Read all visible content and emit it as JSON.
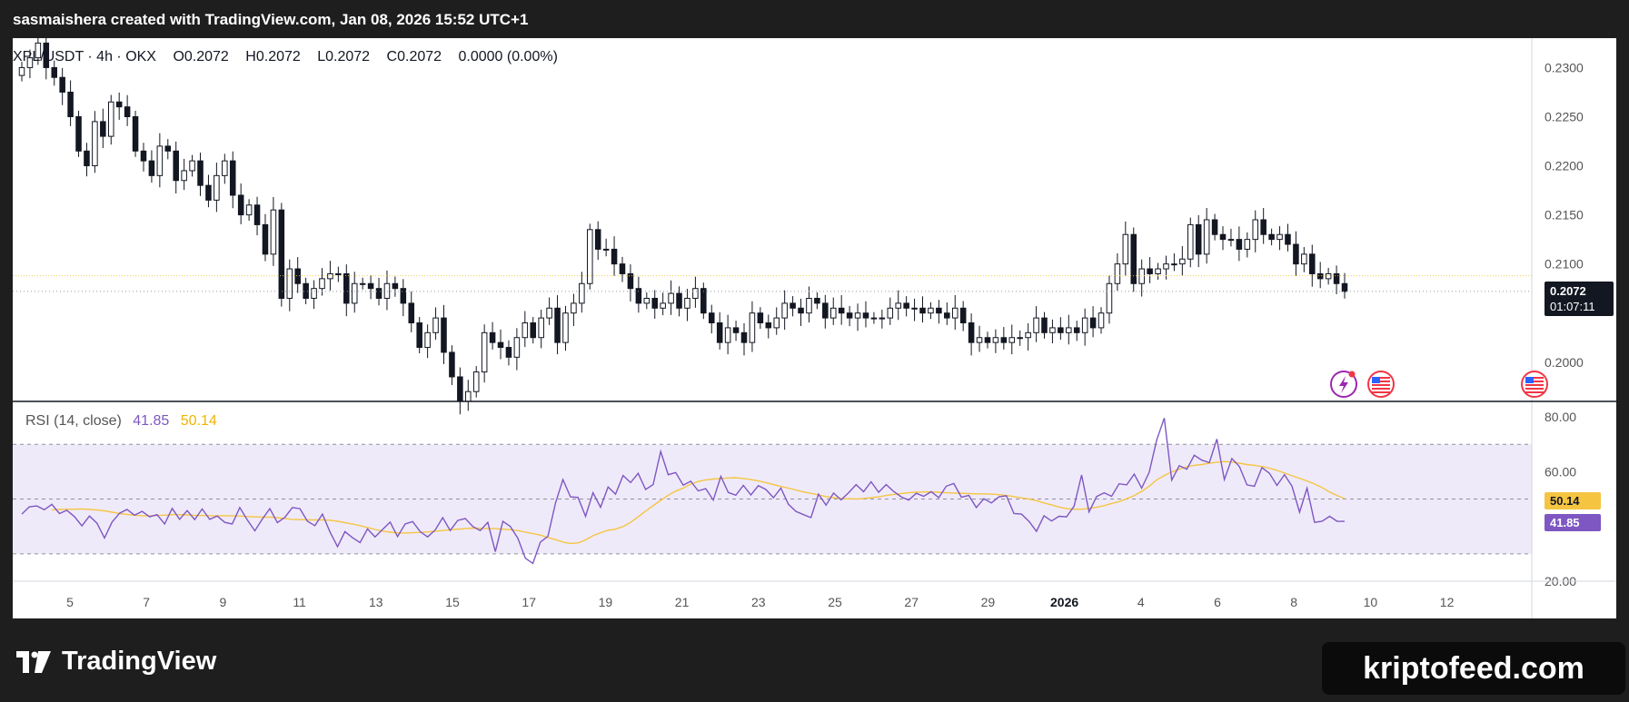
{
  "header": {
    "title": "sasmaishera created with TradingView.com, Jan 08, 2026 15:52 UTC+1"
  },
  "legend": {
    "symbol": "XPL/USDT · 4h · OKX",
    "o_label": "O",
    "o_value": "0.2072",
    "h_label": "H",
    "h_value": "0.2072",
    "l_label": "L",
    "l_value": "0.2072",
    "c_label": "C",
    "c_value": "0.2072",
    "change": "0.0000 (0.00%)"
  },
  "last_price": {
    "value": "0.2072",
    "countdown": "01:07:11"
  },
  "rsi_legend": {
    "label": "RSI (14, close)",
    "rsi_value": "41.85",
    "ma_value": "50.14"
  },
  "footer": {
    "logo_text": "TradingView",
    "watermark": "kriptofeed.com"
  },
  "colors": {
    "candle_up": "#ffffff",
    "candle_down": "#131722",
    "wick": "#131722",
    "rsi_line": "#7e57c2",
    "rsi_ma": "#f5c542",
    "rsi_band": "#efeafa",
    "price_line": "#f5c542"
  },
  "icons": [
    "lightning-event-icon",
    "us-flag-icon"
  ],
  "chart_data": [
    {
      "type": "candlestick",
      "title": "",
      "x_axis": {
        "ticks": [
          "5",
          "7",
          "9",
          "11",
          "13",
          "15",
          "17",
          "19",
          "21",
          "23",
          "25",
          "27",
          "29",
          "2026",
          "4",
          "6",
          "8",
          "10",
          "12"
        ]
      },
      "y_axis": {
        "ticks": [
          "0.2300",
          "0.2250",
          "0.2200",
          "0.2150",
          "0.2100",
          "0.2000"
        ],
        "range": [
          0.196,
          0.233
        ]
      },
      "closes": [
        0.23,
        0.231,
        0.2325,
        0.23,
        0.229,
        0.2275,
        0.225,
        0.2215,
        0.22,
        0.2245,
        0.223,
        0.2265,
        0.226,
        0.225,
        0.2215,
        0.2205,
        0.219,
        0.222,
        0.2215,
        0.2185,
        0.2195,
        0.2205,
        0.218,
        0.2165,
        0.219,
        0.2205,
        0.217,
        0.215,
        0.216,
        0.214,
        0.211,
        0.2155,
        0.2065,
        0.2095,
        0.208,
        0.2065,
        0.2075,
        0.2085,
        0.209,
        0.209,
        0.206,
        0.208,
        0.208,
        0.2075,
        0.2065,
        0.208,
        0.2075,
        0.206,
        0.204,
        0.2015,
        0.203,
        0.2045,
        0.201,
        0.1985,
        0.196,
        0.197,
        0.199,
        0.203,
        0.202,
        0.2015,
        0.2005,
        0.2025,
        0.204,
        0.2025,
        0.2045,
        0.2055,
        0.202,
        0.205,
        0.206,
        0.208,
        0.2135,
        0.2115,
        0.2115,
        0.21,
        0.209,
        0.2075,
        0.206,
        0.2065,
        0.2055,
        0.206,
        0.207,
        0.2055,
        0.2065,
        0.2075,
        0.205,
        0.204,
        0.202,
        0.2035,
        0.203,
        0.202,
        0.205,
        0.204,
        0.2035,
        0.2045,
        0.206,
        0.2055,
        0.205,
        0.2065,
        0.206,
        0.2045,
        0.2055,
        0.205,
        0.2045,
        0.205,
        0.2045,
        0.2045,
        0.2045,
        0.2055,
        0.206,
        0.2055,
        0.2055,
        0.205,
        0.2055,
        0.205,
        0.2045,
        0.2055,
        0.204,
        0.202,
        0.2025,
        0.202,
        0.2025,
        0.202,
        0.2025,
        0.2025,
        0.203,
        0.2045,
        0.203,
        0.2035,
        0.203,
        0.2035,
        0.203,
        0.2045,
        0.2035,
        0.205,
        0.208,
        0.21,
        0.213,
        0.208,
        0.2095,
        0.209,
        0.2095,
        0.21,
        0.21,
        0.2105,
        0.214,
        0.211,
        0.2145,
        0.213,
        0.2125,
        0.2125,
        0.2115,
        0.2125,
        0.2145,
        0.213,
        0.2125,
        0.213,
        0.212,
        0.21,
        0.211,
        0.209,
        0.2085,
        0.209,
        0.208,
        0.2072
      ],
      "legend": ""
    },
    {
      "type": "line",
      "title": "",
      "series": [
        {
          "name": "RSI (14, close)",
          "last": 41.85
        },
        {
          "name": "",
          "last": 50.14
        }
      ],
      "y_axis": {
        "ticks": [
          "80.00",
          "60.00",
          "20.00"
        ],
        "range": [
          20,
          85
        ]
      },
      "band": [
        30,
        70
      ],
      "midline": 50,
      "rsi_values": [
        44.5,
        47.2,
        47.5,
        46.1,
        48.1,
        44.7,
        45.9,
        43.6,
        40.2,
        43.8,
        41.2,
        35.8,
        41.6,
        44.8,
        46.2,
        44.1,
        45.5,
        43.5,
        44.3,
        40.9,
        46.6,
        42.6,
        45.8,
        42.5,
        46.4,
        42.6,
        43.8,
        41.5,
        40.9,
        46.9,
        42.4,
        38.4,
        42.7,
        46.5,
        41.4,
        43.3,
        46.9,
        46.5,
        41.9,
        40.3,
        44.5,
        38.0,
        32.6,
        38.1,
        35.9,
        34.1,
        39.1,
        36.2,
        38.9,
        41.6,
        36.3,
        40.9,
        41.8,
        38.1,
        36.2,
        38.7,
        43.2,
        38.5,
        42.2,
        42.9,
        40.0,
        38.5,
        41.5,
        30.8,
        41.9,
        40.0,
        35.7,
        28.4,
        26.5,
        34.3,
        36.4,
        48.5,
        57.1,
        50.8,
        50.6,
        43.7,
        52.3,
        47.0,
        54.4,
        51.8,
        58.6,
        56.0,
        59.4,
        53.5,
        55.3,
        67.4,
        58.9,
        59.7,
        55.1,
        56.5,
        53.0,
        53.8,
        49.6,
        58.3,
        52.4,
        51.4,
        55.0,
        51.5,
        54.9,
        53.5,
        50.5,
        54.0,
        48.1,
        45.5,
        44.3,
        43.2,
        51.8,
        47.8,
        52.2,
        49.7,
        52.3,
        55.3,
        52.7,
        56.3,
        52.5,
        55.3,
        52.8,
        50.8,
        49.6,
        52.1,
        51.0,
        52.7,
        50.5,
        54.7,
        55.7,
        50.7,
        51.3,
        46.9,
        50.1,
        48.6,
        50.8,
        51.2,
        44.7,
        44.5,
        41.9,
        38.2,
        43.9,
        42.0,
        43.7,
        43.5,
        47.4,
        58.8,
        45.3,
        50.9,
        52.3,
        51.0,
        55.6,
        55.2,
        59.1,
        54.0,
        59.8,
        71.6,
        79.6,
        56.9,
        62.2,
        60.9,
        66.0,
        64.2,
        63.3,
        71.9,
        57.1,
        64.8,
        61.9,
        55.2,
        54.7,
        61.5,
        59.4,
        55.0,
        58.9,
        54.7,
        45.2,
        54.0,
        41.5,
        41.9,
        43.7,
        41.9,
        41.85
      ],
      "ma_values": [
        46.0,
        46.2,
        46.3,
        46.3,
        46.4,
        46.2,
        46.0,
        45.7,
        45.2,
        44.7,
        44.4,
        44.1,
        43.9,
        43.9,
        44.0,
        44.1,
        44.3,
        44.3,
        44.2,
        44.0,
        44.0,
        43.9,
        43.9,
        43.9,
        43.9,
        43.8,
        43.6,
        43.5,
        43.4,
        43.4,
        43.2,
        42.9,
        42.6,
        42.5,
        42.4,
        42.4,
        42.4,
        42.3,
        41.9,
        41.4,
        40.9,
        40.3,
        39.6,
        38.9,
        38.3,
        37.9,
        37.6,
        37.6,
        37.7,
        37.8,
        38.0,
        38.2,
        38.5,
        38.8,
        39.0,
        39.2,
        39.4,
        39.3,
        39.2,
        39.2,
        39.0,
        38.8,
        38.5,
        37.9,
        37.4,
        36.8,
        36.0,
        35.2,
        34.3,
        33.8,
        34.0,
        35.1,
        36.6,
        37.7,
        38.6,
        39.0,
        40.0,
        41.5,
        43.5,
        45.6,
        47.6,
        49.5,
        51.4,
        52.9,
        54.0,
        55.5,
        56.4,
        57.0,
        57.3,
        57.5,
        57.7,
        57.8,
        57.5,
        57.1,
        56.6,
        56.0,
        55.3,
        54.6,
        54.0,
        53.3,
        52.6,
        52.1,
        51.5,
        50.9,
        50.5,
        50.2,
        50.1,
        50.0,
        50.2,
        50.5,
        50.8,
        51.3,
        51.7,
        52.0,
        52.3,
        52.5,
        52.6,
        52.6,
        52.5,
        52.3,
        52.2,
        52.1,
        52.0,
        51.9,
        51.9,
        51.8,
        51.6,
        51.3,
        50.9,
        50.4,
        50.0,
        49.4,
        48.6,
        47.9,
        47.1,
        46.5,
        46.3,
        46.3,
        46.6,
        47.0,
        47.6,
        48.4,
        49.1,
        50.1,
        51.3,
        52.8,
        54.7,
        57.0,
        58.6,
        59.9,
        60.9,
        61.8,
        62.3,
        62.6,
        63.1,
        63.4,
        63.7,
        63.5,
        63.1,
        62.6,
        62.3,
        61.9,
        61.3,
        60.5,
        59.5,
        58.5,
        57.6,
        56.6,
        55.5,
        54.2,
        52.6,
        51.3,
        50.14
      ]
    }
  ]
}
